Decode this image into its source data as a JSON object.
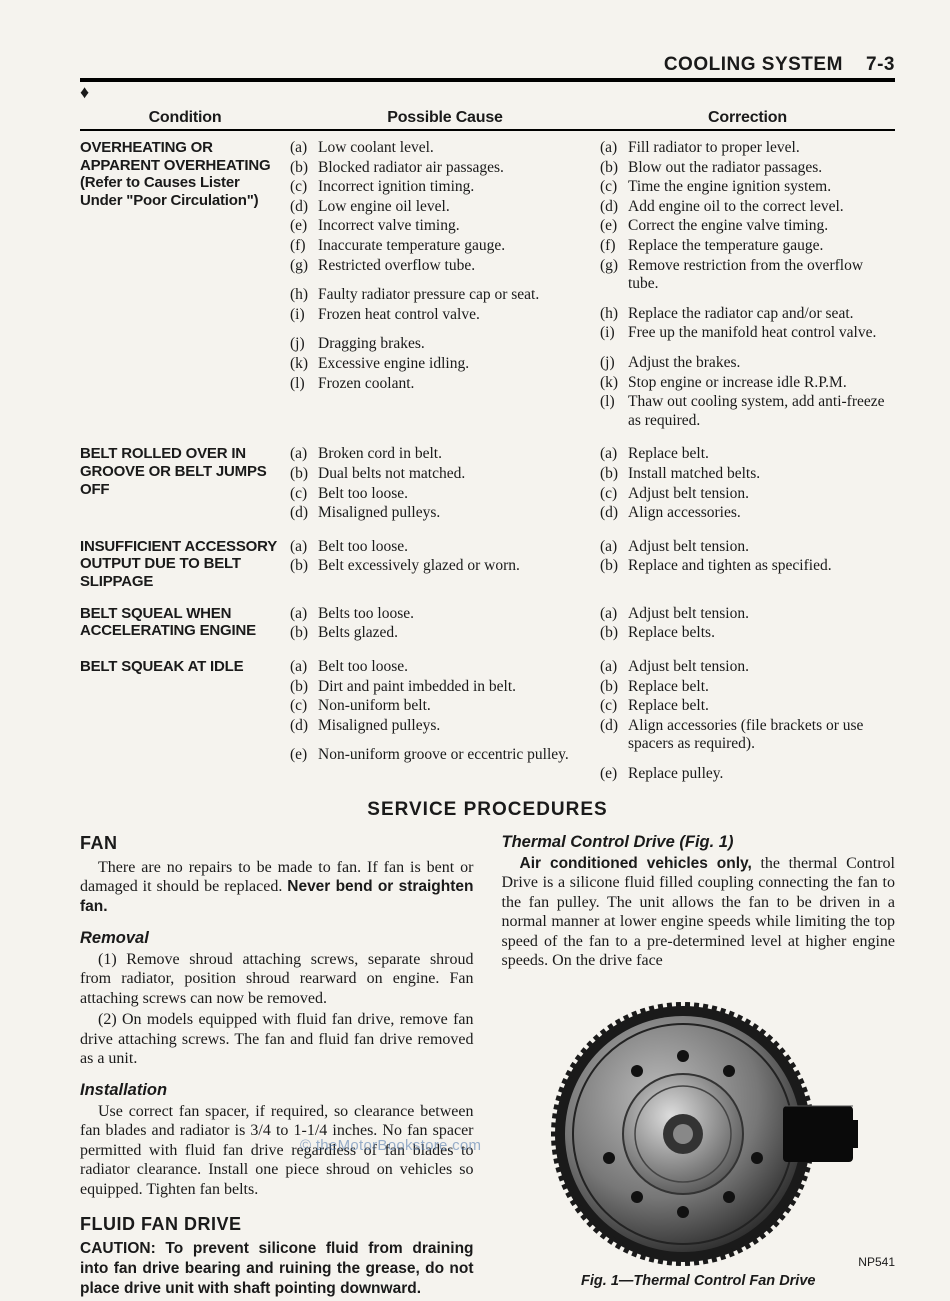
{
  "header": {
    "section_title": "COOLING SYSTEM",
    "page_number": "7-3"
  },
  "columns": {
    "condition": "Condition",
    "cause": "Possible Cause",
    "correction": "Correction"
  },
  "troubleshooting": [
    {
      "condition": "OVERHEATING OR APPARENT OVERHEATING (Refer to Causes Lister Under \"Poor Circulation\")",
      "groups": [
        {
          "causes": [
            {
              "l": "(a)",
              "t": "Low coolant level."
            },
            {
              "l": "(b)",
              "t": "Blocked radiator air passages."
            },
            {
              "l": "(c)",
              "t": "Incorrect ignition timing."
            },
            {
              "l": "(d)",
              "t": "Low engine oil level."
            },
            {
              "l": "(e)",
              "t": "Incorrect valve timing."
            },
            {
              "l": "(f)",
              "t": "Inaccurate temperature gauge."
            },
            {
              "l": "(g)",
              "t": "Restricted overflow tube."
            }
          ],
          "corrections": [
            {
              "l": "(a)",
              "t": "Fill radiator to proper level."
            },
            {
              "l": "(b)",
              "t": "Blow out the radiator passages."
            },
            {
              "l": "(c)",
              "t": "Time the engine ignition system."
            },
            {
              "l": "(d)",
              "t": "Add engine oil to the correct level."
            },
            {
              "l": "(e)",
              "t": "Correct the engine valve timing."
            },
            {
              "l": "(f)",
              "t": "Replace the temperature gauge."
            },
            {
              "l": "(g)",
              "t": "Remove restriction from the overflow tube."
            }
          ]
        },
        {
          "causes": [
            {
              "l": "(h)",
              "t": "Faulty radiator pressure cap or seat."
            },
            {
              "l": "(i)",
              "t": "Frozen heat control valve."
            }
          ],
          "corrections": [
            {
              "l": "(h)",
              "t": "Replace the radiator cap and/or seat."
            },
            {
              "l": "(i)",
              "t": "Free up the manifold heat control valve."
            }
          ]
        },
        {
          "causes": [
            {
              "l": "(j)",
              "t": "Dragging brakes."
            },
            {
              "l": "(k)",
              "t": "Excessive engine idling."
            },
            {
              "l": "(l)",
              "t": "Frozen coolant."
            }
          ],
          "corrections": [
            {
              "l": "(j)",
              "t": "Adjust the brakes."
            },
            {
              "l": "(k)",
              "t": "Stop engine or increase idle R.P.M."
            },
            {
              "l": "(l)",
              "t": "Thaw out cooling system, add anti-freeze as required."
            }
          ]
        }
      ]
    },
    {
      "condition": "BELT ROLLED OVER IN GROOVE OR BELT JUMPS OFF",
      "groups": [
        {
          "causes": [
            {
              "l": "(a)",
              "t": "Broken cord in belt."
            },
            {
              "l": "(b)",
              "t": "Dual belts not matched."
            },
            {
              "l": "(c)",
              "t": "Belt too loose."
            },
            {
              "l": "(d)",
              "t": "Misaligned pulleys."
            }
          ],
          "corrections": [
            {
              "l": "(a)",
              "t": "Replace belt."
            },
            {
              "l": "(b)",
              "t": "Install matched belts."
            },
            {
              "l": "(c)",
              "t": "Adjust belt tension."
            },
            {
              "l": "(d)",
              "t": "Align accessories."
            }
          ]
        }
      ]
    },
    {
      "condition": "INSUFFICIENT ACCESSORY OUTPUT DUE TO BELT SLIPPAGE",
      "groups": [
        {
          "causes": [
            {
              "l": "(a)",
              "t": "Belt too loose."
            },
            {
              "l": "(b)",
              "t": "Belt excessively glazed or worn."
            }
          ],
          "corrections": [
            {
              "l": "(a)",
              "t": "Adjust belt tension."
            },
            {
              "l": "(b)",
              "t": "Replace and tighten as specified."
            }
          ]
        }
      ]
    },
    {
      "condition": "BELT SQUEAL WHEN ACCELERATING ENGINE",
      "groups": [
        {
          "causes": [
            {
              "l": "(a)",
              "t": "Belts too loose."
            },
            {
              "l": "(b)",
              "t": "Belts glazed."
            }
          ],
          "corrections": [
            {
              "l": "(a)",
              "t": "Adjust belt tension."
            },
            {
              "l": "(b)",
              "t": "Replace belts."
            }
          ]
        }
      ]
    },
    {
      "condition": "BELT SQUEAK AT IDLE",
      "groups": [
        {
          "causes": [
            {
              "l": "(a)",
              "t": "Belt too loose."
            },
            {
              "l": "(b)",
              "t": "Dirt and paint imbedded in belt."
            },
            {
              "l": "(c)",
              "t": "Non-uniform belt."
            },
            {
              "l": "(d)",
              "t": "Misaligned pulleys."
            }
          ],
          "corrections": [
            {
              "l": "(a)",
              "t": "Adjust belt tension."
            },
            {
              "l": "(b)",
              "t": "Replace belt."
            },
            {
              "l": "(c)",
              "t": "Replace belt."
            },
            {
              "l": "(d)",
              "t": "Align accessories (file brackets or use spacers as required)."
            }
          ]
        },
        {
          "causes": [
            {
              "l": "(e)",
              "t": "Non-uniform groove or eccentric pulley."
            }
          ],
          "corrections": [
            {
              "l": "(e)",
              "t": "Replace pulley."
            }
          ]
        }
      ]
    }
  ],
  "procedures_title": "SERVICE PROCEDURES",
  "left_col": {
    "h1": "FAN",
    "p1a": "There are no repairs to be made to fan. If fan is bent or damaged it should be replaced. ",
    "p1b": "Never bend or straighten fan.",
    "h2a": "Removal",
    "p2": "(1) Remove shroud attaching screws, separate shroud from radiator, position shroud rearward on engine. Fan attaching screws can now be removed.",
    "p3": "(2) On models equipped with fluid fan drive, remove fan drive attaching screws. The fan and fluid fan drive removed as a unit.",
    "h2b": "Installation",
    "p4": "Use correct fan spacer, if required, so clearance between fan blades and radiator is 3/4 to 1-1/4 inches. No fan spacer permitted with fluid fan drive regardless of fan blades to radiator clearance. Install one piece shroud on vehicles so equipped. Tighten fan belts.",
    "h1b": "FLUID FAN DRIVE",
    "p5": "CAUTION: To prevent silicone fluid from draining into fan drive bearing and ruining the grease, do not place drive unit with shaft pointing downward."
  },
  "right_col": {
    "h2": "Thermal Control Drive (Fig. 1)",
    "p1a": "Air conditioned vehicles only,",
    "p1b": " the thermal Control Drive is a silicone fluid filled coupling connecting the fan to the fan pulley. The unit allows the fan to be driven in a normal manner at lower engine speeds while limiting the top speed of the fan to a pre-determined level at higher engine speeds. On the drive face",
    "fig_label": "NP541",
    "fig_caption": "Fig. 1—Thermal Control Fan Drive"
  },
  "watermark": "© theMotorBookstore.com",
  "style": {
    "bg": "#f5f3ee",
    "text": "#1a1a1a",
    "link": "#5a7fb0"
  }
}
